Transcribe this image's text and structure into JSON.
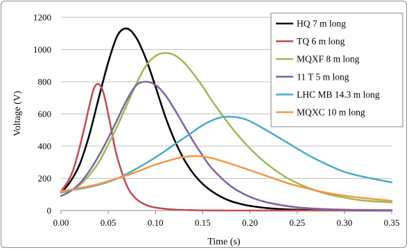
{
  "chart_data": {
    "type": "line",
    "title": "",
    "xlabel": "Time (s)",
    "ylabel": "Voltage (V)",
    "xlim": [
      0.0,
      0.35
    ],
    "ylim": [
      0,
      1200
    ],
    "x_ticks": [
      "0.00",
      "0.05",
      "0.10",
      "0.15",
      "0.20",
      "0.25",
      "0.30",
      "0.35"
    ],
    "y_ticks": [
      "0",
      "200",
      "400",
      "600",
      "800",
      "1000",
      "1200"
    ],
    "grid": "horizontal",
    "legend_position": "top-right",
    "series": [
      {
        "name": "HQ 7 m long",
        "color": "#000000",
        "x": [
          0,
          0.01,
          0.02,
          0.03,
          0.04,
          0.05,
          0.06,
          0.07,
          0.08,
          0.09,
          0.1,
          0.11,
          0.12,
          0.13,
          0.14,
          0.15,
          0.16,
          0.17,
          0.18,
          0.19,
          0.2,
          0.22,
          0.24,
          0.27,
          0.3,
          0.33,
          0.35
        ],
        "y": [
          110,
          180,
          290,
          470,
          700,
          920,
          1090,
          1130,
          1070,
          940,
          770,
          590,
          440,
          320,
          230,
          165,
          118,
          83,
          58,
          41,
          29,
          14,
          7,
          3,
          1,
          0,
          0
        ]
      },
      {
        "name": "TQ 6 m long",
        "color": "#c0504d",
        "x": [
          0,
          0.005,
          0.01,
          0.015,
          0.02,
          0.025,
          0.03,
          0.035,
          0.04,
          0.045,
          0.05,
          0.055,
          0.06,
          0.07,
          0.08,
          0.09,
          0.1,
          0.12,
          0.14,
          0.17,
          0.2,
          0.24,
          0.28,
          0.35
        ],
        "y": [
          120,
          160,
          210,
          290,
          400,
          520,
          650,
          760,
          785,
          730,
          600,
          450,
          320,
          150,
          70,
          35,
          18,
          6,
          2,
          0,
          0,
          0,
          0,
          0
        ]
      },
      {
        "name": "MQXF 8 m long",
        "color": "#9bbb59",
        "x": [
          0,
          0.01,
          0.02,
          0.03,
          0.04,
          0.05,
          0.06,
          0.07,
          0.08,
          0.09,
          0.1,
          0.11,
          0.12,
          0.13,
          0.14,
          0.15,
          0.16,
          0.18,
          0.2,
          0.22,
          0.24,
          0.26,
          0.28,
          0.3,
          0.32,
          0.35
        ],
        "y": [
          110,
          125,
          160,
          220,
          300,
          410,
          530,
          660,
          790,
          900,
          960,
          978,
          965,
          920,
          850,
          770,
          680,
          520,
          385,
          280,
          200,
          145,
          105,
          80,
          62,
          50
        ]
      },
      {
        "name": "11 T 5 m long",
        "color": "#8064a2",
        "x": [
          0,
          0.01,
          0.02,
          0.03,
          0.04,
          0.05,
          0.06,
          0.07,
          0.08,
          0.09,
          0.1,
          0.11,
          0.12,
          0.13,
          0.14,
          0.15,
          0.16,
          0.18,
          0.2,
          0.22,
          0.25,
          0.28,
          0.31,
          0.35
        ],
        "y": [
          90,
          120,
          170,
          245,
          340,
          450,
          570,
          690,
          780,
          800,
          780,
          720,
          630,
          530,
          430,
          340,
          260,
          150,
          85,
          48,
          20,
          9,
          4,
          2
        ]
      },
      {
        "name": "LHC MB 14.3 m long",
        "color": "#4bacc6",
        "x": [
          0,
          0.02,
          0.04,
          0.06,
          0.08,
          0.1,
          0.12,
          0.14,
          0.15,
          0.16,
          0.17,
          0.18,
          0.19,
          0.2,
          0.22,
          0.24,
          0.26,
          0.28,
          0.3,
          0.32,
          0.35
        ],
        "y": [
          120,
          135,
          160,
          200,
          260,
          330,
          410,
          490,
          530,
          560,
          580,
          583,
          575,
          555,
          490,
          420,
          350,
          290,
          240,
          210,
          175
        ]
      },
      {
        "name": "MQXC 10 m long",
        "color": "#f79646",
        "x": [
          0,
          0.02,
          0.04,
          0.06,
          0.08,
          0.1,
          0.12,
          0.13,
          0.14,
          0.15,
          0.16,
          0.18,
          0.2,
          0.22,
          0.24,
          0.26,
          0.28,
          0.3,
          0.32,
          0.35
        ],
        "y": [
          120,
          140,
          165,
          200,
          240,
          285,
          320,
          333,
          338,
          335,
          325,
          290,
          250,
          210,
          170,
          138,
          112,
          92,
          78,
          60
        ]
      }
    ]
  }
}
